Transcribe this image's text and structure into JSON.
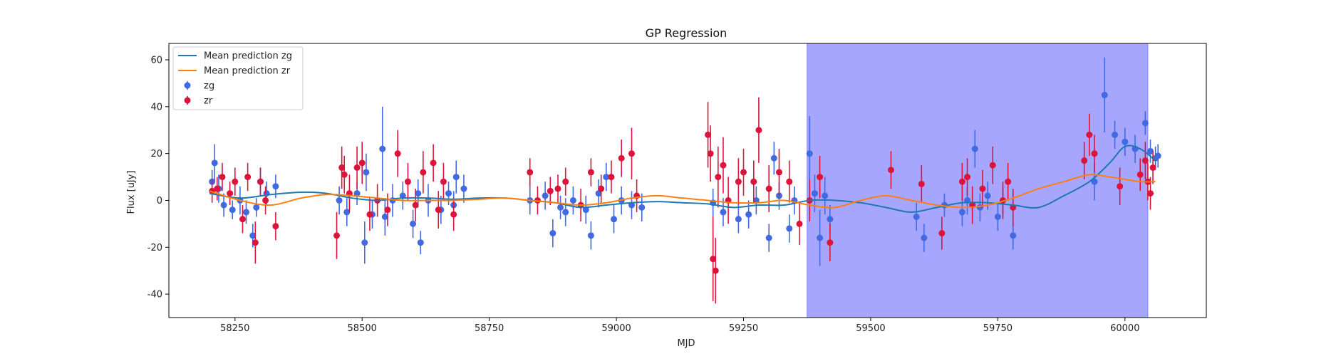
{
  "chart_data": {
    "type": "scatter",
    "title": "GP Regression",
    "xlabel": "MJD",
    "ylabel": "Flux [uJy]",
    "xlim": [
      58120,
      60160
    ],
    "ylim": [
      -50,
      67
    ],
    "xticks": [
      58250,
      58500,
      58750,
      59000,
      59250,
      59500,
      59750,
      60000
    ],
    "yticks": [
      -40,
      -20,
      0,
      20,
      40,
      60
    ],
    "shaded_region": {
      "x_start": 59375,
      "x_end": 60045,
      "color": "#a6a6ff"
    },
    "legend_position": "upper-left",
    "lines": [
      {
        "name": "Mean prediction zg",
        "color": "#1f77b4",
        "x": [
          58200,
          58260,
          58320,
          58380,
          58430,
          58480,
          58530,
          58580,
          58630,
          58680,
          58730,
          58780,
          58830,
          58880,
          58930,
          58980,
          59030,
          59080,
          59130,
          59180,
          59230,
          59280,
          59330,
          59380,
          59430,
          59480,
          59530,
          59580,
          59630,
          59680,
          59730,
          59780,
          59830,
          59880,
          59930,
          59970,
          60000,
          60030,
          60060
        ],
        "y": [
          3,
          1,
          2.5,
          3.5,
          3,
          1,
          0,
          1,
          1,
          0.5,
          1,
          1,
          0,
          -1,
          -3,
          -2,
          -1,
          -0.5,
          -1,
          -1.5,
          -3,
          -2,
          -2,
          0,
          0,
          -1,
          -3,
          -5,
          -3,
          -1,
          -1,
          -2,
          -3,
          2,
          8,
          16,
          23,
          22,
          17
        ]
      },
      {
        "name": "Mean prediction zr",
        "color": "#ff7f0e",
        "x": [
          58200,
          58260,
          58320,
          58380,
          58430,
          58480,
          58530,
          58580,
          58630,
          58680,
          58730,
          58780,
          58830,
          58880,
          58930,
          58980,
          59030,
          59080,
          59130,
          59180,
          59230,
          59280,
          59330,
          59380,
          59430,
          59480,
          59530,
          59580,
          59630,
          59680,
          59730,
          59780,
          59830,
          59880,
          59930,
          59970,
          60000,
          60030,
          60060
        ],
        "y": [
          4,
          0,
          -2,
          1,
          2.5,
          2,
          1,
          0,
          0,
          0,
          0.5,
          1,
          0,
          -1,
          -2,
          -1,
          1,
          2,
          1,
          0,
          -1,
          -1,
          0,
          -2,
          -3,
          0,
          2,
          0,
          -2,
          -3,
          -2,
          1,
          5,
          8,
          11,
          10,
          9,
          8,
          8
        ]
      }
    ],
    "series": [
      {
        "name": "zg",
        "color": "#4169e1",
        "x": [
          58205,
          58210,
          58218,
          58228,
          58245,
          58260,
          58272,
          58285,
          58292,
          58300,
          58312,
          58330,
          58455,
          58470,
          58490,
          58505,
          58508,
          58520,
          58540,
          58545,
          58560,
          58580,
          58600,
          58610,
          58615,
          58630,
          58655,
          58670,
          58680,
          58685,
          58700,
          58830,
          58860,
          58875,
          58890,
          58900,
          58915,
          58940,
          58950,
          58965,
          58980,
          58995,
          59010,
          59030,
          59050,
          59190,
          59210,
          59240,
          59260,
          59275,
          59300,
          59310,
          59320,
          59340,
          59350,
          59380,
          59390,
          59400,
          59410,
          59420,
          59590,
          59605,
          59645,
          59680,
          59690,
          59705,
          59715,
          59730,
          59750,
          59760,
          59780,
          59940,
          59960,
          59980,
          60000,
          60020,
          60040,
          60050,
          60060,
          60065
        ],
        "y": [
          8,
          16,
          5,
          -2,
          -4,
          0,
          -5,
          -15,
          -3,
          8,
          3,
          6,
          0,
          -5,
          3,
          -18,
          12,
          -6,
          22,
          -7,
          0,
          2,
          -10,
          3,
          -18,
          0,
          -4,
          3,
          -2,
          10,
          5,
          0,
          2,
          -14,
          -3,
          -5,
          0,
          -4,
          -15,
          3,
          10,
          -8,
          0,
          -2,
          -3,
          -1,
          -5,
          -8,
          -6,
          0,
          -16,
          18,
          2,
          -12,
          0,
          20,
          3,
          -16,
          2,
          -8,
          -7,
          -16,
          -2,
          -5,
          0,
          22,
          -3,
          2,
          -7,
          0,
          -15,
          8,
          45,
          28,
          25,
          22,
          33,
          21,
          18,
          19
        ],
        "err": [
          5,
          8,
          6,
          5,
          4,
          6,
          5,
          5,
          4,
          6,
          5,
          5,
          6,
          6,
          5,
          9,
          8,
          6,
          18,
          8,
          7,
          6,
          6,
          6,
          5,
          7,
          6,
          5,
          6,
          7,
          6,
          6,
          6,
          6,
          5,
          6,
          6,
          6,
          6,
          6,
          6,
          6,
          6,
          6,
          6,
          6,
          6,
          6,
          6,
          6,
          6,
          7,
          6,
          6,
          6,
          16,
          8,
          12,
          8,
          6,
          6,
          6,
          5,
          6,
          6,
          8,
          6,
          6,
          6,
          6,
          6,
          8,
          16,
          6,
          6,
          6,
          5,
          5,
          5,
          5
        ]
      },
      {
        "name": "zr",
        "color": "#dc143c",
        "x": [
          58205,
          58215,
          58225,
          58240,
          58250,
          58265,
          58275,
          58290,
          58300,
          58310,
          58330,
          58450,
          58460,
          58465,
          58475,
          58490,
          58500,
          58515,
          58530,
          58550,
          58570,
          58590,
          58605,
          58620,
          58640,
          58650,
          58660,
          58680,
          58830,
          58845,
          58870,
          58885,
          58900,
          58930,
          58950,
          58970,
          58990,
          59010,
          59030,
          59040,
          59180,
          59185,
          59190,
          59195,
          59200,
          59210,
          59220,
          59240,
          59250,
          59270,
          59280,
          59300,
          59320,
          59340,
          59360,
          59380,
          59400,
          59420,
          59540,
          59600,
          59640,
          59680,
          59690,
          59700,
          59720,
          59740,
          59760,
          59770,
          59780,
          59920,
          59930,
          59940,
          59990,
          60030,
          60040,
          60045,
          60050,
          60055
        ],
        "y": [
          4,
          5,
          10,
          3,
          8,
          -8,
          10,
          -18,
          8,
          0,
          -11,
          -15,
          14,
          11,
          3,
          14,
          16,
          -6,
          0,
          -4,
          20,
          8,
          -2,
          12,
          16,
          -4,
          8,
          -6,
          12,
          0,
          4,
          5,
          8,
          -2,
          12,
          5,
          10,
          18,
          20,
          2,
          28,
          20,
          -25,
          -30,
          10,
          15,
          0,
          8,
          12,
          8,
          30,
          5,
          12,
          8,
          -10,
          0,
          10,
          -18,
          13,
          7,
          -14,
          8,
          10,
          -2,
          5,
          15,
          0,
          8,
          -3,
          17,
          28,
          20,
          6,
          11,
          17,
          8,
          3,
          14
        ],
        "err": [
          5,
          5,
          6,
          5,
          6,
          6,
          6,
          9,
          6,
          6,
          6,
          10,
          9,
          8,
          8,
          9,
          9,
          7,
          7,
          7,
          10,
          8,
          7,
          9,
          8,
          8,
          8,
          7,
          6,
          6,
          6,
          6,
          6,
          7,
          6,
          6,
          7,
          8,
          11,
          7,
          14,
          12,
          18,
          14,
          13,
          12,
          10,
          10,
          10,
          9,
          14,
          10,
          10,
          9,
          9,
          9,
          9,
          8,
          8,
          8,
          7,
          8,
          8,
          8,
          8,
          8,
          8,
          8,
          8,
          8,
          9,
          8,
          8,
          7,
          8,
          8,
          7,
          7
        ]
      }
    ],
    "legend": [
      {
        "label": "Mean prediction zg",
        "kind": "line",
        "color": "#1f77b4"
      },
      {
        "label": "Mean prediction zr",
        "kind": "line",
        "color": "#ff7f0e"
      },
      {
        "label": "zg",
        "kind": "errorbar",
        "color": "#4169e1"
      },
      {
        "label": "zr",
        "kind": "errorbar",
        "color": "#dc143c"
      }
    ]
  }
}
